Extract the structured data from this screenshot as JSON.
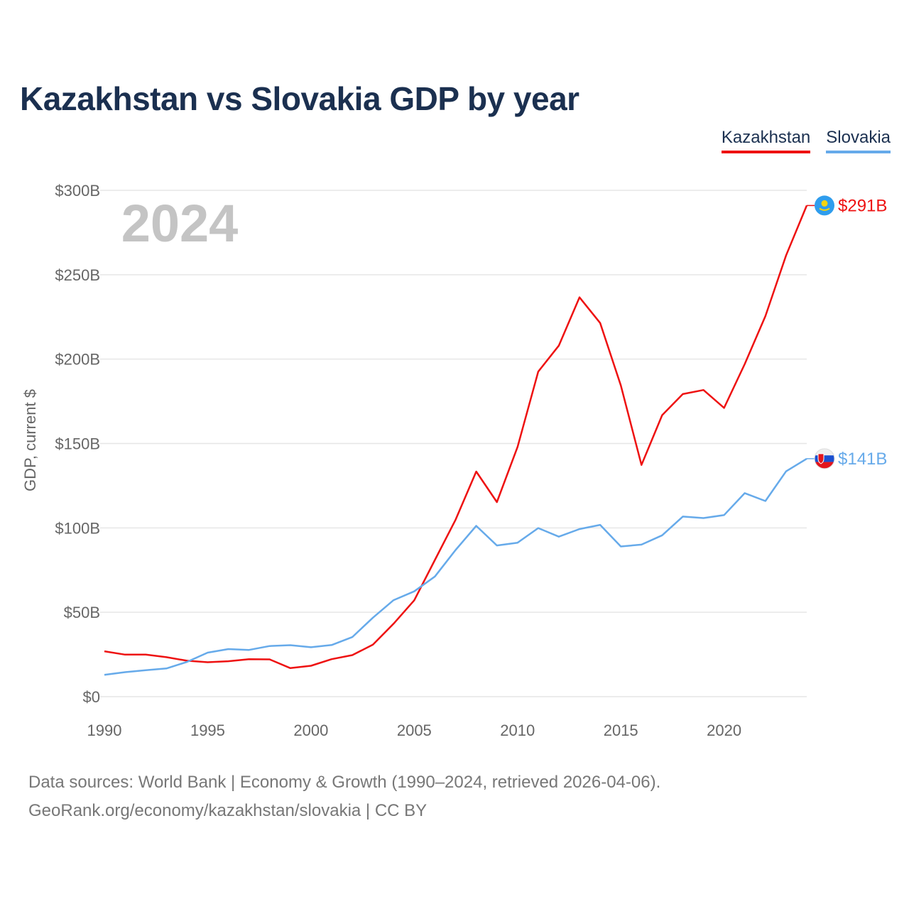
{
  "title": "Kazakhstan vs Slovakia GDP by year",
  "legend": {
    "kz": "Kazakhstan",
    "sk": "Slovakia"
  },
  "source": {
    "line1": "Data sources: World Bank | Economy & Growth (1990–2024, retrieved 2026-04-06).",
    "line2": "GeoRank.org/economy/kazakhstan/slovakia | CC BY"
  },
  "chart_data": {
    "type": "line",
    "title": "Kazakhstan vs Slovakia GDP by year",
    "ylabel": "GDP, current $",
    "xlabel": "",
    "year_label": "2024",
    "xlim": [
      1990,
      2024
    ],
    "ylim": [
      0,
      300
    ],
    "y_ticks": [
      0,
      50,
      100,
      150,
      200,
      250,
      300
    ],
    "y_tick_labels": [
      "$0",
      "$50B",
      "$100B",
      "$150B",
      "$200B",
      "$250B",
      "$300B"
    ],
    "x_ticks": [
      1990,
      1995,
      2000,
      2005,
      2010,
      2015,
      2020
    ],
    "x_tick_labels": [
      "1990",
      "1995",
      "2000",
      "2005",
      "2010",
      "2015",
      "2020"
    ],
    "grid": true,
    "legend_position": "top-right",
    "x": [
      1990,
      1991,
      1992,
      1993,
      1994,
      1995,
      1996,
      1997,
      1998,
      1999,
      2000,
      2001,
      2002,
      2003,
      2004,
      2005,
      2006,
      2007,
      2008,
      2009,
      2010,
      2011,
      2012,
      2013,
      2014,
      2015,
      2016,
      2017,
      2018,
      2019,
      2020,
      2021,
      2022,
      2023,
      2024
    ],
    "series": [
      {
        "name": "Kazakhstan",
        "color": "#ee1111",
        "end_label": "$291B",
        "values": [
          26.9,
          24.9,
          24.9,
          23.4,
          21.3,
          20.4,
          21.0,
          22.2,
          22.1,
          16.9,
          18.3,
          22.2,
          24.6,
          30.8,
          43.2,
          57.1,
          81.0,
          104.8,
          133.4,
          115.3,
          148.0,
          192.6,
          208.0,
          236.6,
          221.4,
          184.4,
          137.3,
          166.8,
          179.3,
          181.7,
          171.1,
          197.1,
          225.5,
          261.4,
          291.0
        ]
      },
      {
        "name": "Slovakia",
        "color": "#66aaea",
        "end_label": "$141B",
        "values": [
          12.9,
          14.5,
          15.7,
          16.7,
          20.6,
          26.1,
          28.2,
          27.7,
          30.0,
          30.5,
          29.3,
          30.6,
          35.3,
          46.8,
          57.2,
          62.4,
          71.2,
          86.9,
          101.2,
          89.6,
          91.2,
          99.9,
          94.8,
          99.3,
          101.8,
          89.0,
          90.1,
          95.6,
          106.7,
          105.8,
          107.6,
          120.6,
          115.9,
          133.5,
          141.0
        ]
      }
    ]
  }
}
